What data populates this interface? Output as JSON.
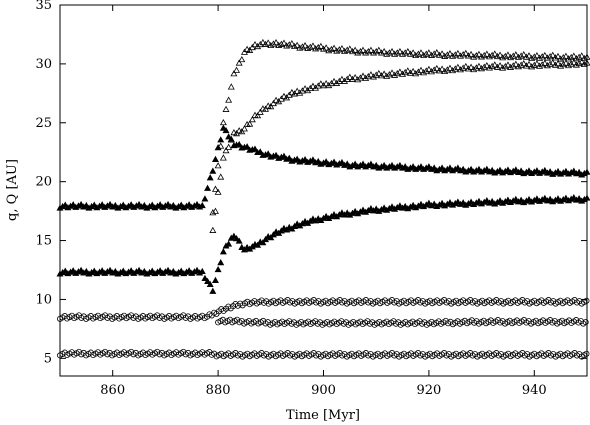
{
  "chart_data": {
    "type": "scatter",
    "title": "",
    "xlabel": "Time [Myr]",
    "ylabel": "q, Q [AU]",
    "xlim": [
      850,
      950
    ],
    "ylim": [
      3.5,
      35
    ],
    "xticks": [
      "860",
      "880",
      "900",
      "920",
      "940"
    ],
    "yticks": [
      "5",
      "10",
      "15",
      "20",
      "25",
      "30",
      "35"
    ],
    "xtick_values": [
      860,
      880,
      900,
      920,
      940
    ],
    "ytick_values": [
      5,
      10,
      15,
      20,
      25,
      30,
      35
    ],
    "grid": false,
    "series": [
      {
        "marker": "filled-triangle",
        "x": [
          850,
          860,
          870,
          877,
          879,
          881,
          883,
          885,
          887,
          889,
          891,
          895,
          900,
          905,
          910,
          920,
          930,
          940,
          950
        ],
        "y": [
          17.9,
          17.9,
          17.9,
          17.9,
          21.0,
          24.5,
          23.2,
          22.9,
          22.6,
          22.3,
          22.1,
          21.8,
          21.6,
          21.4,
          21.3,
          21.1,
          20.9,
          20.8,
          20.7
        ]
      },
      {
        "marker": "filled-triangle",
        "x": [
          850,
          860,
          870,
          877,
          879,
          881,
          883,
          885,
          887,
          889,
          891,
          895,
          900,
          905,
          910,
          920,
          930,
          940,
          950
        ],
        "y": [
          12.3,
          12.3,
          12.3,
          12.3,
          10.8,
          14.0,
          15.5,
          14.2,
          14.5,
          15.1,
          15.6,
          16.3,
          16.9,
          17.3,
          17.6,
          18.0,
          18.2,
          18.4,
          18.5
        ]
      },
      {
        "marker": "open-triangle",
        "x": [
          879,
          881,
          883,
          885,
          887,
          889,
          891,
          893,
          895,
          900,
          905,
          910,
          920,
          930,
          940,
          950
        ],
        "y": [
          17.5,
          25.0,
          29.0,
          31.0,
          31.5,
          31.7,
          31.7,
          31.6,
          31.5,
          31.3,
          31.1,
          31.0,
          30.8,
          30.7,
          30.6,
          30.5
        ]
      },
      {
        "marker": "open-triangle",
        "x": [
          879,
          881,
          883,
          885,
          887,
          889,
          891,
          895,
          900,
          905,
          910,
          920,
          930,
          940,
          950
        ],
        "y": [
          16.0,
          22.0,
          24.0,
          24.5,
          25.5,
          26.2,
          26.8,
          27.6,
          28.2,
          28.7,
          29.0,
          29.4,
          29.7,
          29.9,
          30.0
        ]
      },
      {
        "marker": "open-circle",
        "x": [
          850,
          860,
          870,
          878,
          880,
          885,
          890,
          900,
          910,
          920,
          930,
          940,
          950
        ],
        "y": [
          8.5,
          8.5,
          8.5,
          8.5,
          9.0,
          9.7,
          9.8,
          9.8,
          9.8,
          9.8,
          9.8,
          9.8,
          9.8
        ]
      },
      {
        "marker": "open-circle",
        "x": [
          880,
          885,
          890,
          900,
          910,
          920,
          930,
          940,
          950
        ],
        "y": [
          8.2,
          8.1,
          8.0,
          8.0,
          8.0,
          8.0,
          8.1,
          8.1,
          8.1
        ]
      },
      {
        "marker": "open-circle",
        "x": [
          850,
          860,
          870,
          878,
          880,
          890,
          900,
          910,
          920,
          930,
          940,
          950
        ],
        "y": [
          5.4,
          5.4,
          5.4,
          5.4,
          5.3,
          5.3,
          5.3,
          5.3,
          5.3,
          5.3,
          5.3,
          5.3
        ]
      }
    ]
  }
}
